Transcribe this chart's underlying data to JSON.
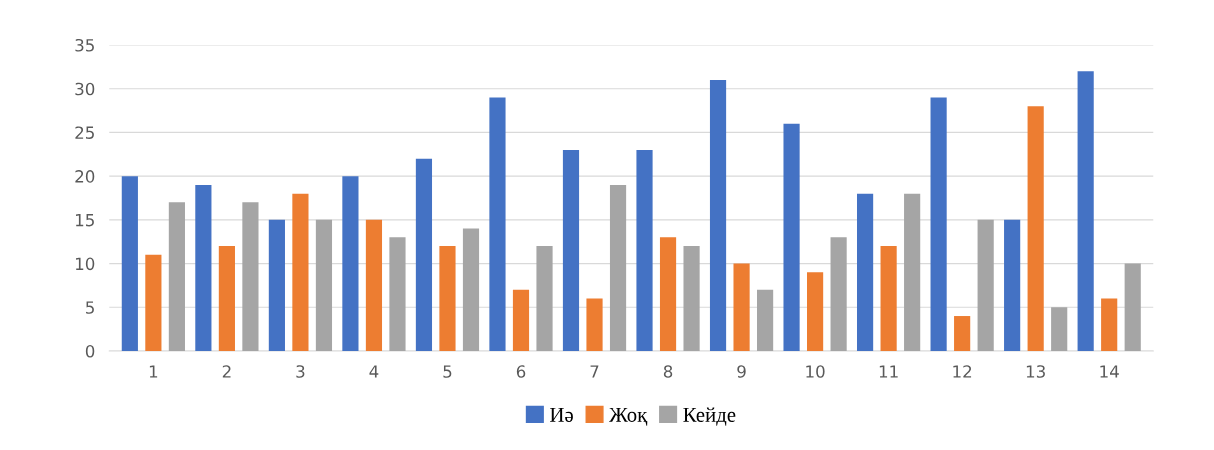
{
  "chart_data": {
    "type": "bar",
    "categories": [
      "1",
      "2",
      "3",
      "4",
      "5",
      "6",
      "7",
      "8",
      "9",
      "10",
      "11",
      "12",
      "13",
      "14"
    ],
    "series": [
      {
        "name": "Иә",
        "color": "#4472c4",
        "values": [
          20,
          19,
          15,
          20,
          22,
          29,
          23,
          23,
          31,
          26,
          18,
          29,
          15,
          32
        ]
      },
      {
        "name": "Жоқ",
        "color": "#ed7d31",
        "values": [
          11,
          12,
          18,
          15,
          12,
          7,
          6,
          13,
          10,
          9,
          12,
          4,
          28,
          6
        ]
      },
      {
        "name": "Кейде",
        "color": "#a5a5a5",
        "values": [
          17,
          17,
          15,
          13,
          14,
          12,
          19,
          12,
          7,
          13,
          18,
          15,
          5,
          10
        ]
      }
    ],
    "ylim": [
      0,
      35
    ],
    "yticks": [
      0,
      5,
      10,
      15,
      20,
      25,
      30,
      35
    ],
    "grid": "y",
    "legend": "bottom"
  }
}
